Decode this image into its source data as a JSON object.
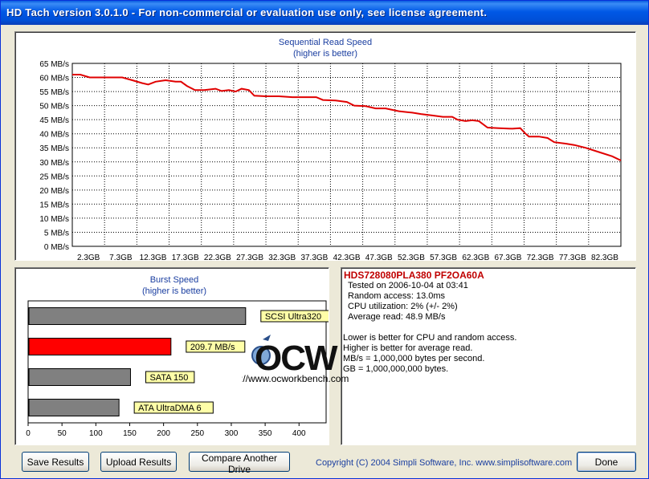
{
  "window": {
    "title": "HD Tach version 3.0.1.0  - For non-commercial or evaluation use only, see license agreement."
  },
  "sequential_chart": {
    "title": "Sequential Read Speed",
    "subtitle": "(higher is better)",
    "y_ticks": [
      "0 MB/s",
      "5 MB/s",
      "10 MB/s",
      "15 MB/s",
      "20 MB/s",
      "25 MB/s",
      "30 MB/s",
      "35 MB/s",
      "40 MB/s",
      "45 MB/s",
      "50 MB/s",
      "55 MB/s",
      "60 MB/s",
      "65 MB/s"
    ],
    "x_ticks": [
      "2.3GB",
      "7.3GB",
      "12.3GB",
      "17.3GB",
      "22.3GB",
      "27.3GB",
      "32.3GB",
      "37.3GB",
      "42.3GB",
      "47.3GB",
      "52.3GB",
      "57.3GB",
      "62.3GB",
      "67.3GB",
      "72.3GB",
      "77.3GB",
      "82.3GB"
    ],
    "line_color": "#e00000"
  },
  "burst_chart": {
    "title": "Burst Speed",
    "subtitle": "(higher is better)",
    "x_ticks": [
      "0",
      "50",
      "100",
      "150",
      "200",
      "250",
      "300",
      "350",
      "400"
    ]
  },
  "chart_data": [
    {
      "type": "line",
      "title": "Sequential Read Speed",
      "subtitle": "(higher is better)",
      "xlabel": "",
      "ylabel": "",
      "x_unit": "GB",
      "xlim": [
        0,
        82.3
      ],
      "ylim": [
        0,
        65
      ],
      "grid": true,
      "series": [
        {
          "values_xy": [
            [
              0,
              61
            ],
            [
              1.2,
              61
            ],
            [
              2.6,
              60
            ],
            [
              5,
              60
            ],
            [
              7.5,
              60
            ],
            [
              9,
              59
            ],
            [
              10.5,
              58
            ],
            [
              11.4,
              57.5
            ],
            [
              12.5,
              58.5
            ],
            [
              14,
              59
            ],
            [
              15.5,
              58.5
            ],
            [
              16.3,
              58.5
            ],
            [
              17.2,
              57
            ],
            [
              18.4,
              55.5
            ],
            [
              19.8,
              55.5
            ],
            [
              21.5,
              56
            ],
            [
              22.4,
              55.2
            ],
            [
              23.5,
              55.5
            ],
            [
              24.5,
              55
            ],
            [
              25.4,
              56
            ],
            [
              26.5,
              55.5
            ],
            [
              27.3,
              53.5
            ],
            [
              29,
              53.3
            ],
            [
              31,
              53.3
            ],
            [
              33,
              53
            ],
            [
              35,
              53
            ],
            [
              36.6,
              53
            ],
            [
              37.6,
              52
            ],
            [
              39.5,
              51.8
            ],
            [
              41.2,
              51.3
            ],
            [
              42.3,
              50
            ],
            [
              44,
              49.8
            ],
            [
              45.5,
              49
            ],
            [
              47,
              49
            ],
            [
              49,
              48
            ],
            [
              51,
              47.5
            ],
            [
              52.3,
              47
            ],
            [
              54,
              46.5
            ],
            [
              55.6,
              46
            ],
            [
              57,
              46
            ],
            [
              57.8,
              45
            ],
            [
              59,
              44.5
            ],
            [
              60,
              44.8
            ],
            [
              61,
              44.5
            ],
            [
              62.3,
              42.2
            ],
            [
              64,
              42
            ],
            [
              66,
              41.8
            ],
            [
              67.2,
              42
            ],
            [
              68,
              40
            ],
            [
              68.5,
              39
            ],
            [
              70,
              39
            ],
            [
              71.3,
              38.5
            ],
            [
              72.3,
              37
            ],
            [
              74,
              36.5
            ],
            [
              75.3,
              36
            ],
            [
              77,
              35
            ],
            [
              79,
              33.5
            ],
            [
              81,
              32
            ],
            [
              82.3,
              30.5
            ]
          ]
        }
      ]
    },
    {
      "type": "bar",
      "title": "Burst Speed",
      "subtitle": "(higher is better)",
      "orientation": "horizontal",
      "xlim": [
        0,
        440
      ],
      "categories": [
        "SCSI Ultra320",
        "209.7 MB/s",
        "SATA 150",
        "ATA UltraDMA 6"
      ],
      "values": [
        320,
        209.7,
        150,
        133
      ],
      "colors": [
        "#808080",
        "#ff0000",
        "#808080",
        "#808080"
      ]
    }
  ],
  "drive_info": {
    "model": "HDS728080PLA380 PF2OA60A",
    "tested_on": "Tested on 2006-10-04 at 03:41",
    "random_access": "Random access: 13.0ms",
    "cpu_utilization": "CPU utilization: 2% (+/- 2%)",
    "average_read": "Average read: 48.9 MB/s",
    "notes": [
      "Lower is better for CPU and random access.",
      "Higher is better for average read.",
      "MB/s = 1,000,000 bytes per second.",
      "GB = 1,000,000,000 bytes."
    ]
  },
  "watermark": {
    "text": "OCW",
    "url": "http://www.ocworkbench.com"
  },
  "buttons": {
    "save": "Save Results",
    "upload": "Upload Results",
    "compare": "Compare Another Drive",
    "done": "Done"
  },
  "copyright": "Copyright (C) 2004 Simpli Software, Inc. www.simplisoftware.com"
}
